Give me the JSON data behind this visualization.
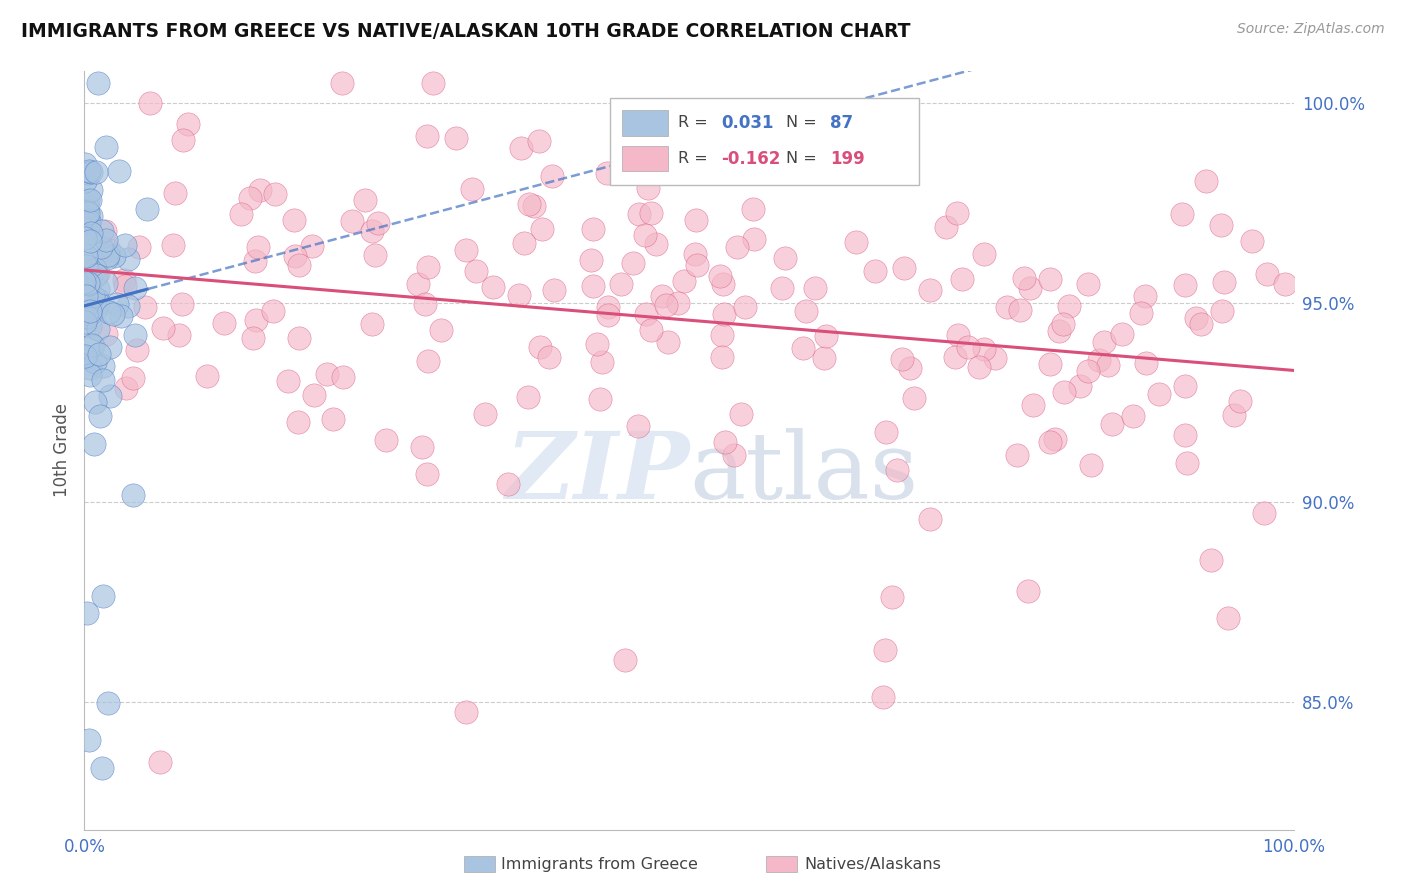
{
  "title": "IMMIGRANTS FROM GREECE VS NATIVE/ALASKAN 10TH GRADE CORRELATION CHART",
  "source": "Source: ZipAtlas.com",
  "ylabel": "10th Grade",
  "r_blue": 0.031,
  "n_blue": 87,
  "r_pink": -0.162,
  "n_pink": 199,
  "xlim": [
    0.0,
    1.0
  ],
  "ylim": [
    0.818,
    1.008
  ],
  "yticks": [
    0.85,
    0.9,
    0.95,
    1.0
  ],
  "ytick_labels": [
    "85.0%",
    "90.0%",
    "95.0%",
    "100.0%"
  ],
  "xtick_labels": [
    "0.0%",
    "100.0%"
  ],
  "color_blue": "#a8c4e0",
  "color_blue_line": "#4472c4",
  "color_pink": "#f4b8c8",
  "color_pink_line": "#d94f7a",
  "watermark_color": "#c8d8ec",
  "seed_blue": 42,
  "seed_pink": 7
}
